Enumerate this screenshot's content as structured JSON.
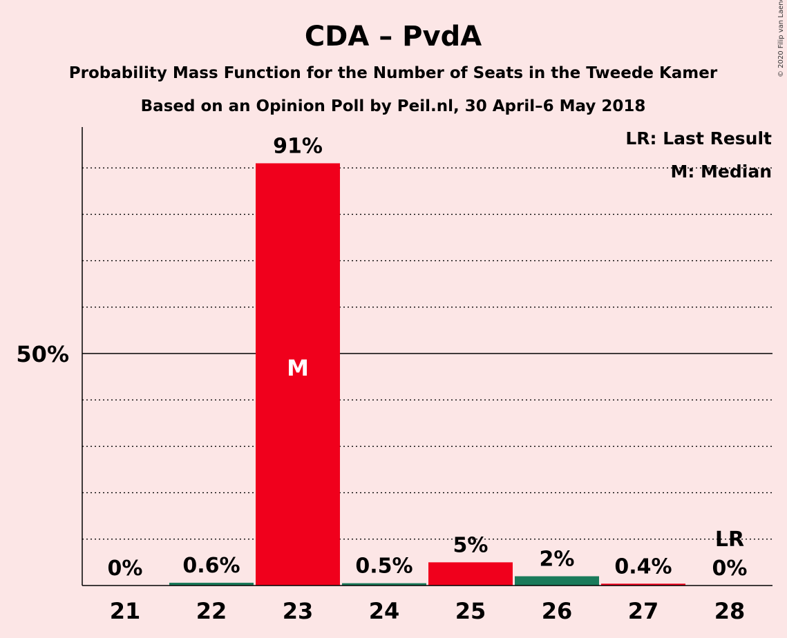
{
  "chart_data": {
    "type": "bar",
    "title": "CDA – PvdA",
    "subtitle": "Probability Mass Function for the Number of Seats in the Tweede Kamer",
    "subtitle2": "Based on an Opinion Poll by Peil.nl, 30 April–6 May 2018",
    "copyright": "© 2020 Filip van Laenen",
    "categories": [
      "21",
      "22",
      "23",
      "24",
      "25",
      "26",
      "27",
      "28"
    ],
    "values": [
      0,
      0.6,
      91,
      0.5,
      5,
      2,
      0.4,
      0
    ],
    "labels": [
      "0%",
      "0.6%",
      "91%",
      "0.5%",
      "5%",
      "2%",
      "0.4%",
      "0%"
    ],
    "colors": [
      "#F0001C",
      "#1A7A5A",
      "#F0001C",
      "#1A7A5A",
      "#F0001C",
      "#1A7A5A",
      "#F0001C",
      "#1A7A5A"
    ],
    "ylim": [
      0,
      100
    ],
    "yticks": [
      {
        "value": 50,
        "label": "50%"
      }
    ],
    "gridlines": [
      10,
      20,
      30,
      40,
      60,
      70,
      80,
      90
    ],
    "median_category": "23",
    "median_marker": "M",
    "last_result_category": "28",
    "last_result_marker": "LR",
    "legend": [
      "LR: Last Result",
      "M: Median"
    ],
    "legend_position": "top-right"
  }
}
